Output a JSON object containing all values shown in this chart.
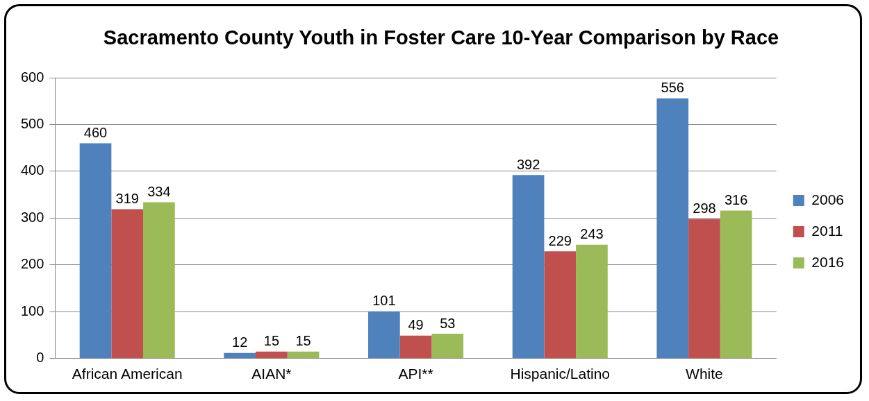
{
  "chart_data": {
    "type": "bar",
    "title": "Sacramento County Youth in Foster Care 10-Year Comparison by Race",
    "categories": [
      "African American",
      "AIAN*",
      "API**",
      "Hispanic/Latino",
      "White"
    ],
    "series": [
      {
        "name": "2006",
        "color": "#4f81bd",
        "values": [
          460,
          12,
          101,
          392,
          556
        ]
      },
      {
        "name": "2011",
        "color": "#c0504d",
        "values": [
          319,
          15,
          49,
          229,
          298
        ]
      },
      {
        "name": "2016",
        "color": "#9bbb59",
        "values": [
          334,
          15,
          53,
          243,
          316
        ]
      }
    ],
    "ylim": [
      0,
      600
    ],
    "yticks": [
      0,
      100,
      200,
      300,
      400,
      500,
      600
    ],
    "grid": "y",
    "legend": "right",
    "data_labels": true
  }
}
